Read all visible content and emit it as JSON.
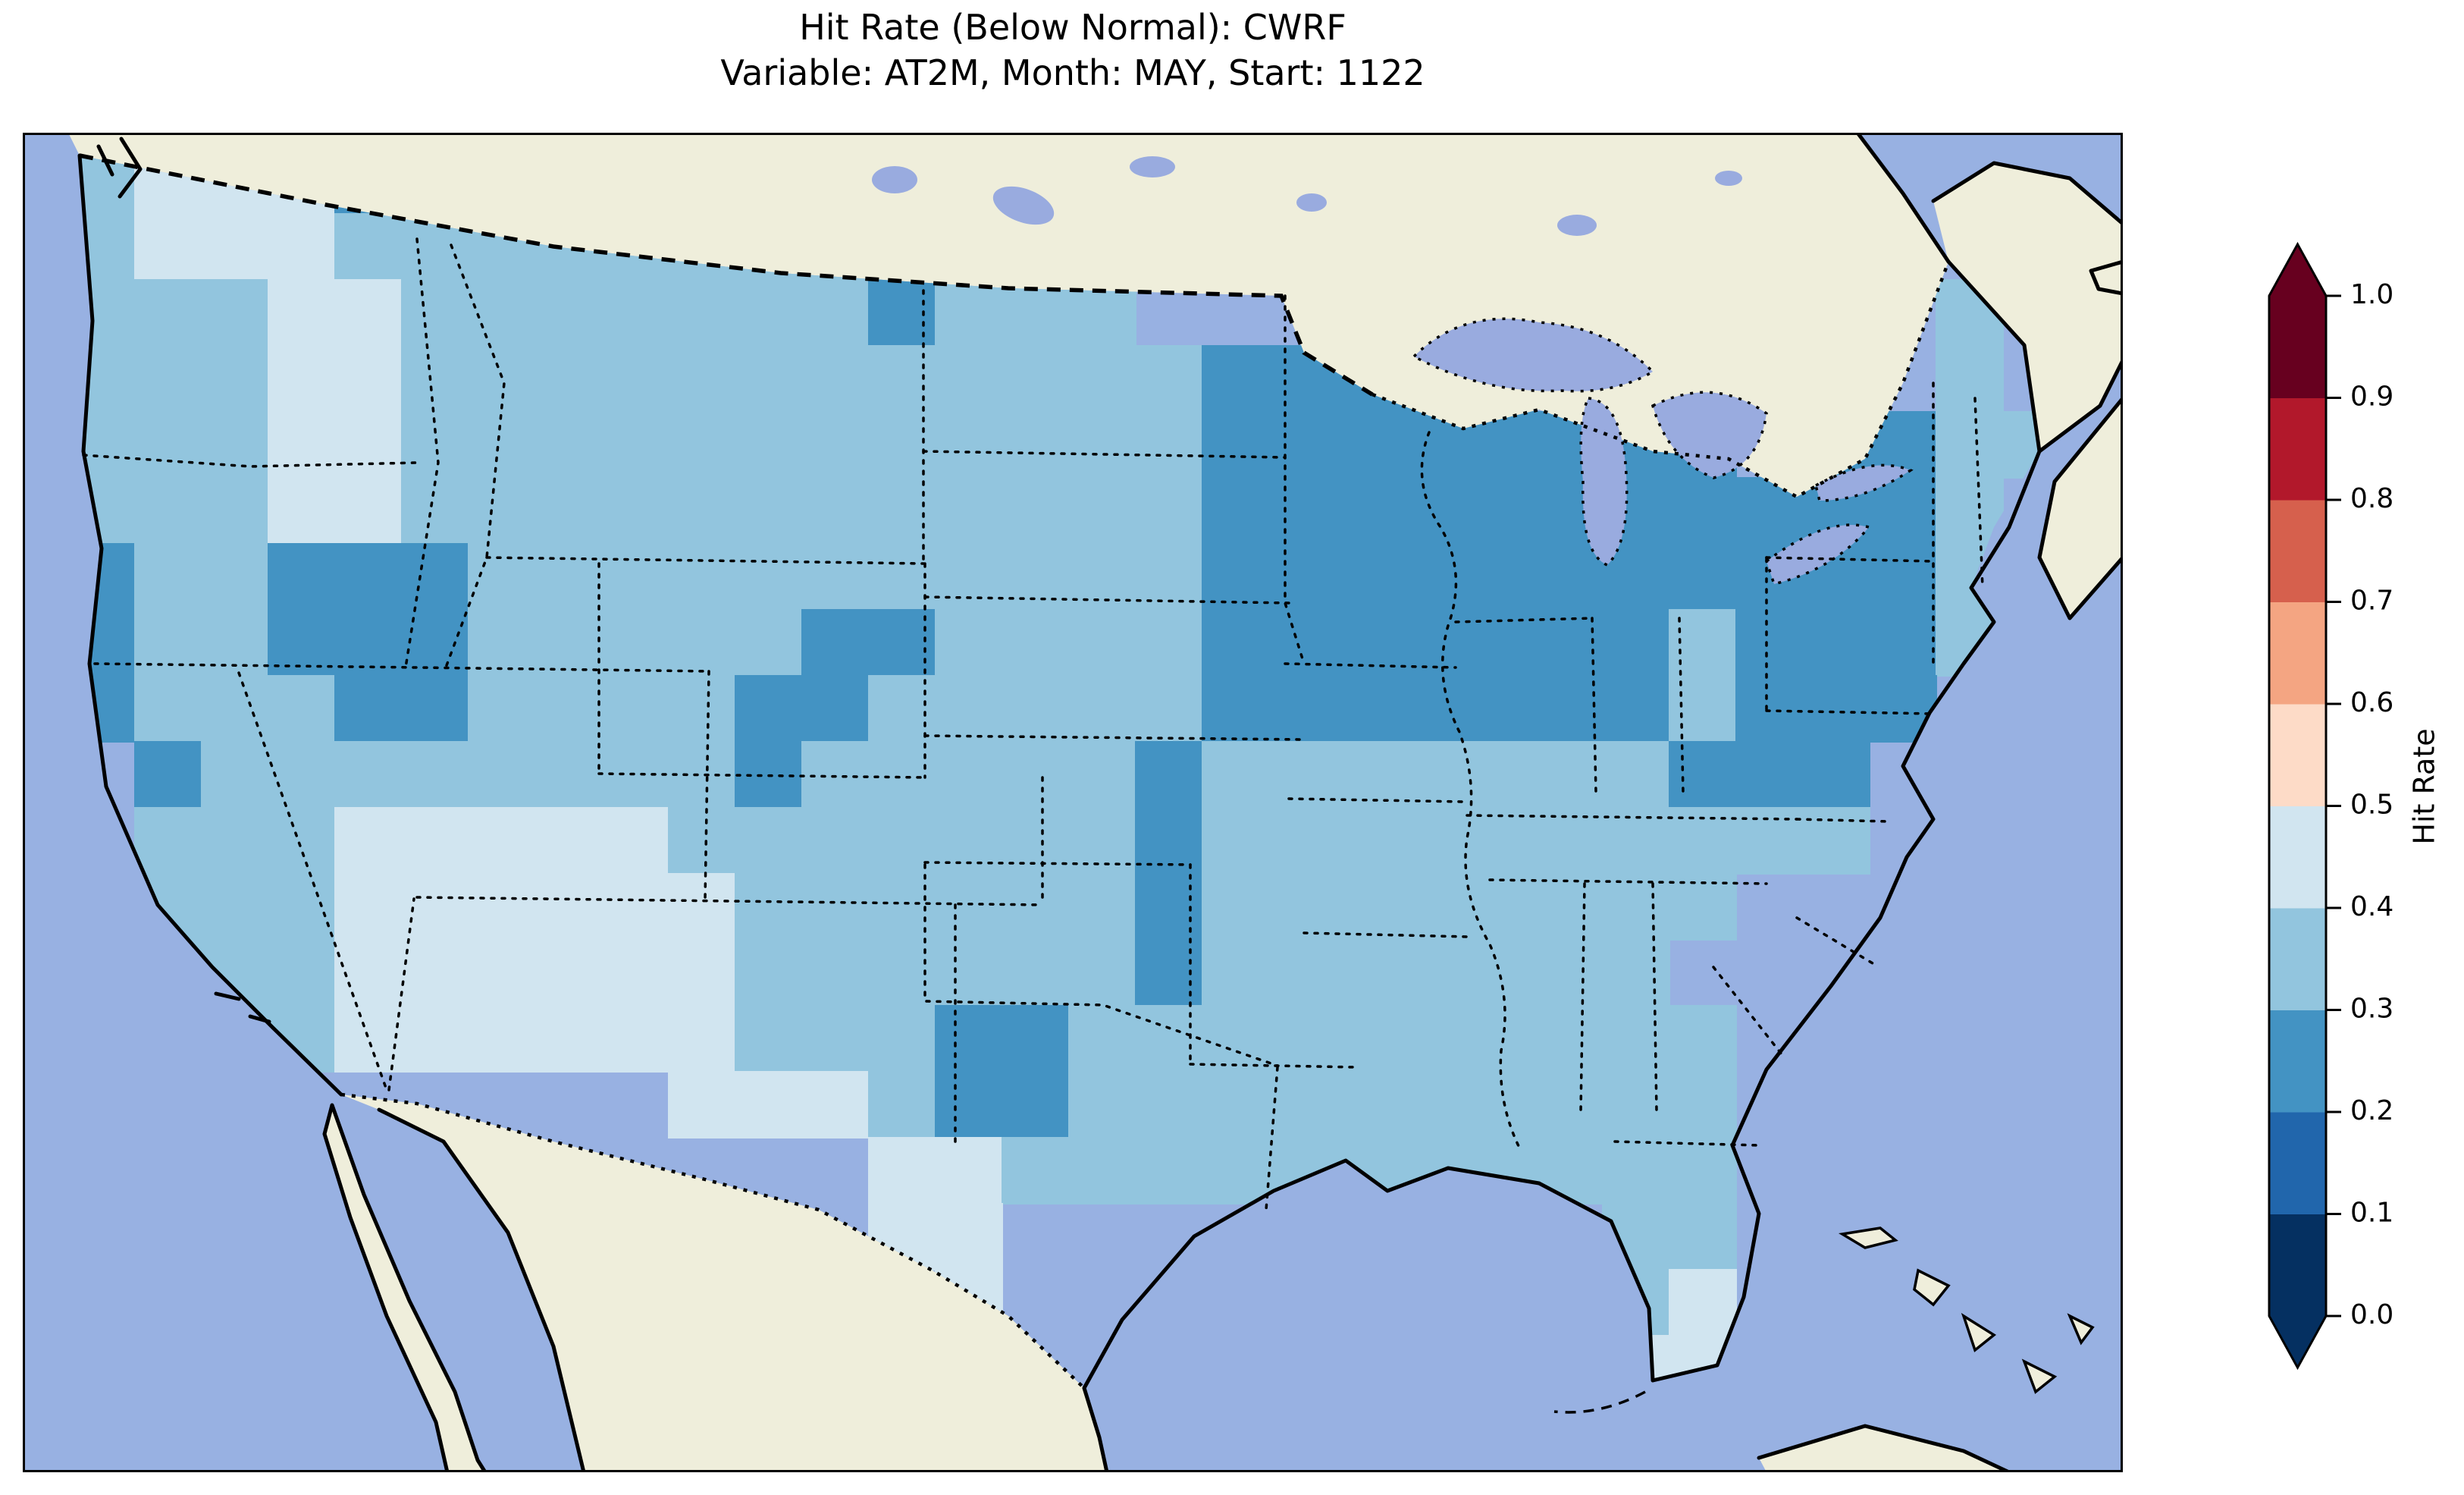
{
  "title": {
    "line1": "Hit Rate (Below Normal): CWRF",
    "line2": "Variable: AT2M, Month: MAY, Start: 1122"
  },
  "colorbar": {
    "label": "Hit Rate",
    "ticks": [
      "1.0",
      "0.9",
      "0.8",
      "0.7",
      "0.6",
      "0.5",
      "0.4",
      "0.3",
      "0.2",
      "0.1",
      "0.0"
    ],
    "bins": [
      {
        "range": [
          0.0,
          0.1
        ],
        "color": "#053061"
      },
      {
        "range": [
          0.1,
          0.2
        ],
        "color": "#2166ac"
      },
      {
        "range": [
          0.2,
          0.3
        ],
        "color": "#4393c3"
      },
      {
        "range": [
          0.3,
          0.4
        ],
        "color": "#92c5de"
      },
      {
        "range": [
          0.4,
          0.5
        ],
        "color": "#d1e5f0"
      },
      {
        "range": [
          0.5,
          0.6
        ],
        "color": "#fddbc7"
      },
      {
        "range": [
          0.6,
          0.7
        ],
        "color": "#f4a582"
      },
      {
        "range": [
          0.7,
          0.8
        ],
        "color": "#d6604d"
      },
      {
        "range": [
          0.8,
          0.9
        ],
        "color": "#b2182b"
      },
      {
        "range": [
          0.9,
          1.0
        ],
        "color": "#67001f"
      }
    ],
    "under_color": "#053061",
    "over_color": "#67001f"
  },
  "map": {
    "ocean_color": "#98b1e2",
    "land_color": "#efeedb",
    "lake_color": "#99abdf",
    "coastline_color": "#000000"
  },
  "chart_data": {
    "type": "heatmap",
    "title": "Hit Rate (Below Normal): CWRF",
    "subtitle": "Variable: AT2M, Month: MAY, Start: 1122",
    "region": "Contiguous United States",
    "colorbar_label": "Hit Rate",
    "levels": [
      0.0,
      0.1,
      0.2,
      0.3,
      0.4,
      0.5,
      0.6,
      0.7,
      0.8,
      0.9,
      1.0
    ],
    "colormap": [
      "#053061",
      "#2166ac",
      "#4393c3",
      "#92c5de",
      "#d1e5f0",
      "#fddbc7",
      "#f4a582",
      "#d6604d",
      "#b2182b",
      "#67001f"
    ],
    "colormap_name": "RdBu reversed, 10 discrete bins, extended arrows both ends",
    "legend_position": "right",
    "observed_value_range": [
      0.2,
      0.5
    ],
    "grid": {
      "note": "coarse estimate of the plotted hit-rate field over CONUS; codes are bin midpoints",
      "cols": 30,
      "rows_count": 19,
      "cell_values": {
        ".": null,
        "1": 0.25,
        "2": 0.35,
        "3": 0.45
      },
      "cell_colors": {
        "1": "#4393c3",
        "2": "#92c5de",
        "3": "#d1e5f0"
      },
      "rows": [
        "2333122222222222..............",
        "2333222222222222..............",
        "2223322222221222............2.",
        "222332222222222221111.......2.",
        "2223322222222222211111111.1122",
        "22233222222222222111111111112.",
        "12211122222222222111111111112.",
        "12211122222112222111111121112.",
        "1222112222112222211111112111..",
        ".12222222212222212222222111...",
        ".22233333222222212222222222...",
        ".222333333222222122222222.....",
        ".22233333322222212222222......",
        "..22333333222112222222222.....",
        ".........3332112222222222.....",
        "............3322222222222.....",
        "............33.........22.....",
        ".............3.........23.....",
        ".............2.........33....."
      ]
    }
  }
}
